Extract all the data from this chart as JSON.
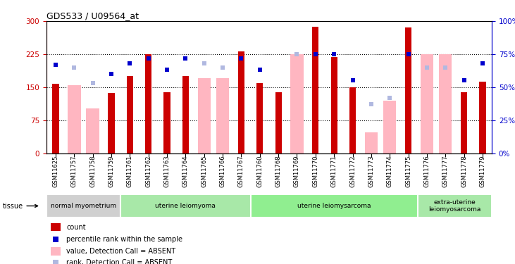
{
  "title": "GDS533 / U09564_at",
  "samples": [
    "GSM11625",
    "GSM11757",
    "GSM11758",
    "GSM11759",
    "GSM11761",
    "GSM11762",
    "GSM11763",
    "GSM11764",
    "GSM11765",
    "GSM11766",
    "GSM11767",
    "GSM11760",
    "GSM11768",
    "GSM11769",
    "GSM11770",
    "GSM11771",
    "GSM11772",
    "GSM11773",
    "GSM11774",
    "GSM11775",
    "GSM11776",
    "GSM11777",
    "GSM11778",
    "GSM11779"
  ],
  "count": [
    158,
    null,
    null,
    137,
    175,
    225,
    138,
    175,
    null,
    null,
    232,
    160,
    138,
    null,
    288,
    218,
    150,
    null,
    null,
    285,
    null,
    null,
    138,
    163
  ],
  "absent_value": [
    null,
    155,
    102,
    null,
    null,
    null,
    null,
    null,
    170,
    170,
    null,
    null,
    null,
    225,
    null,
    null,
    null,
    48,
    120,
    null,
    225,
    225,
    null,
    null
  ],
  "percentile_rank": [
    67,
    null,
    null,
    60,
    68,
    72,
    63,
    72,
    null,
    null,
    72,
    63,
    null,
    null,
    75,
    75,
    55,
    null,
    null,
    75,
    null,
    null,
    55,
    68
  ],
  "absent_rank": [
    null,
    65,
    53,
    null,
    null,
    null,
    null,
    null,
    68,
    65,
    null,
    null,
    null,
    75,
    null,
    null,
    null,
    37,
    42,
    null,
    65,
    65,
    null,
    null
  ],
  "group_labels": [
    "normal myometrium",
    "uterine leiomyoma",
    "uterine leiomysarcoma",
    "extra-uterine\nleiomyosarcoma"
  ],
  "group_starts": [
    0,
    4,
    11,
    20
  ],
  "group_ends": [
    4,
    11,
    20,
    24
  ],
  "group_colors": [
    "#d0d0d0",
    "#a8e8a8",
    "#90ee90",
    "#a8e8a8"
  ],
  "ylim_left": [
    0,
    300
  ],
  "ylim_right": [
    0,
    100
  ],
  "yticks_left": [
    0,
    75,
    150,
    225,
    300
  ],
  "yticks_right": [
    0,
    25,
    50,
    75,
    100
  ],
  "count_color": "#cc0000",
  "absent_value_color": "#ffb6c1",
  "percentile_color": "#0000cc",
  "absent_rank_color": "#b0b8e0",
  "grid_color": "black"
}
